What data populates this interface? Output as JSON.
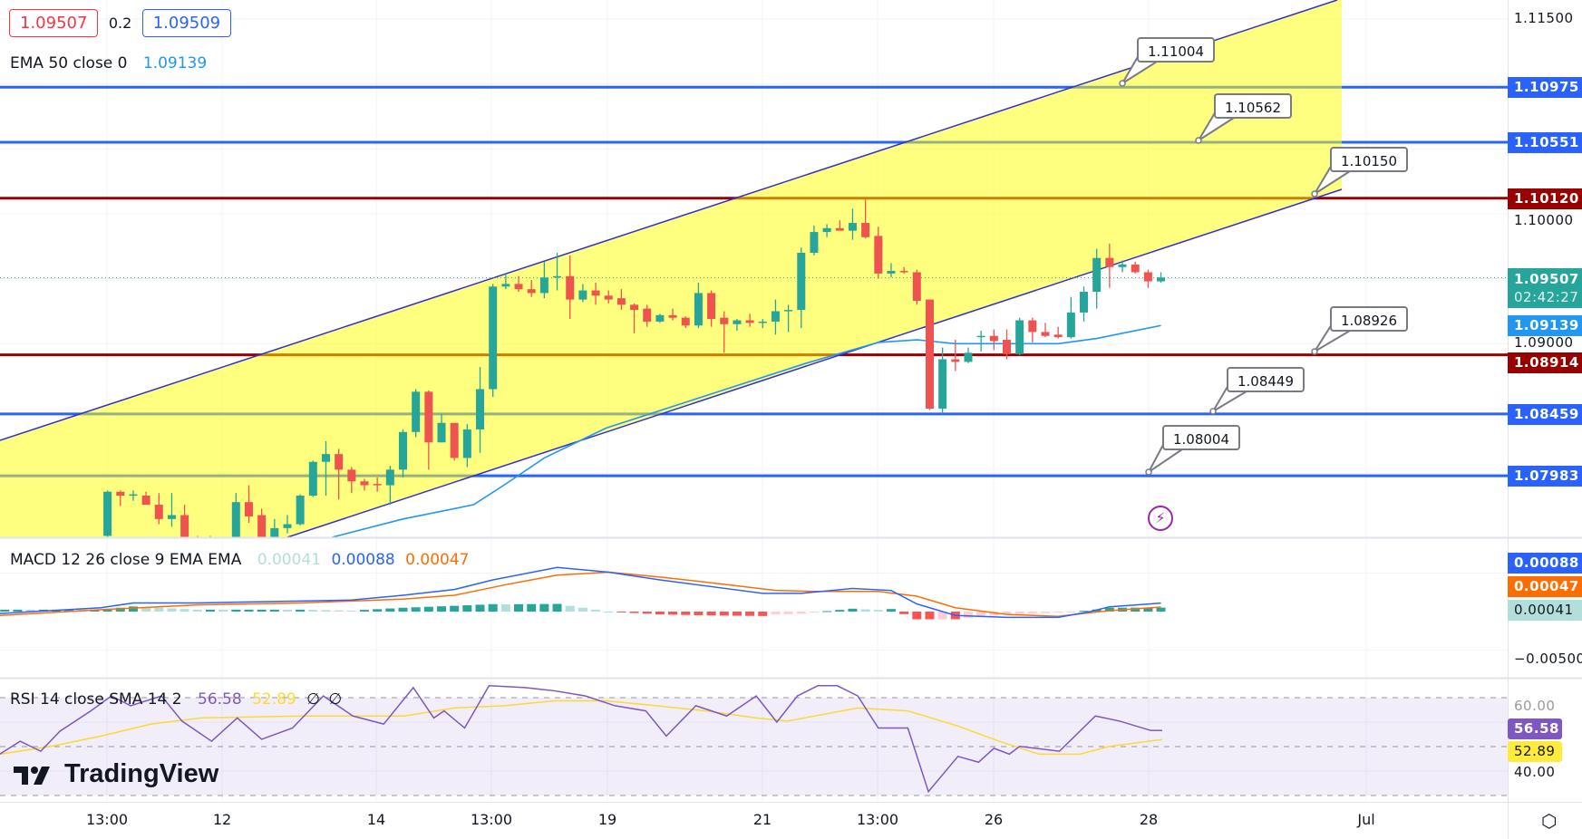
{
  "legend": {
    "bid": "1.09507",
    "spread": "0.2",
    "ask": "1.09509",
    "ema_label": "EMA 50 close 0",
    "ema_value": "1.09139",
    "macd_label": "MACD 12 26 close 9 EMA EMA",
    "macd_hist": "0.00041",
    "macd_line": "0.00088",
    "macd_signal": "0.00047",
    "rsi_label": "RSI 14 close SMA 14 2",
    "rsi_value": "56.58",
    "rsi_sma": "52.89",
    "rsi_extra1": "∅",
    "rsi_extra2": "∅"
  },
  "colors": {
    "up": "#26a69a",
    "down": "#ef5350",
    "blue_line": "#2962ff",
    "red_line": "#990000",
    "ema": "#2196f3",
    "channel_fill": "#ffff00",
    "channel_line": "#3030d0",
    "macd": "#2962ff",
    "signal": "#ff6d00",
    "rsi": "#7e57c2",
    "rsi_sma": "#fdd835"
  },
  "logo": "TradingView",
  "price_axis": {
    "ticks": [
      "1.11500",
      "1.10000",
      "1.09000"
    ],
    "labels": [
      {
        "text": "1.10975",
        "value": 1.10975,
        "color": "#2962ff"
      },
      {
        "text": "1.10551",
        "value": 1.10551,
        "color": "#2962ff"
      },
      {
        "text": "1.10120",
        "value": 1.1012,
        "color": "#990000"
      },
      {
        "text": "1.09139",
        "value": 1.09139,
        "color": "#2196f3"
      },
      {
        "text": "1.08914",
        "value": 1.08914,
        "color": "#990000"
      },
      {
        "text": "1.08459",
        "value": 1.08459,
        "color": "#2962ff"
      },
      {
        "text": "1.07983",
        "value": 1.07983,
        "color": "#2962ff"
      }
    ],
    "last_price": "1.09507",
    "countdown": "02:42:27"
  },
  "macd_axis": {
    "line": "0.00088",
    "signal": "0.00047",
    "hist": "0.00041",
    "tick": "−0.00500"
  },
  "rsi_axis": {
    "value": "56.58",
    "sma": "52.89",
    "tick_40": "40.00",
    "tick_60": "60.00"
  },
  "time_axis": [
    "13:00",
    "12",
    "14",
    "13:00",
    "19",
    "21",
    "13:00",
    "26",
    "28",
    "Jul"
  ],
  "callouts": [
    "1.11004",
    "1.10562",
    "1.10150",
    "1.08926",
    "1.08449",
    "1.08004"
  ],
  "chart_data": [
    {
      "type": "candlestick",
      "ylim": [
        1.075,
        1.1165
      ],
      "hlines": [
        {
          "value": 1.10975,
          "color": "#2962ff"
        },
        {
          "value": 1.10551,
          "color": "#2962ff"
        },
        {
          "value": 1.1012,
          "color": "#990000"
        },
        {
          "value": 1.08914,
          "color": "#990000"
        },
        {
          "value": 1.08459,
          "color": "#2962ff"
        },
        {
          "value": 1.07983,
          "color": "#2962ff"
        }
      ],
      "candles_ohlc": [
        [
          1.0752,
          1.0787,
          1.0745,
          1.0786
        ],
        [
          1.0786,
          1.0787,
          1.0775,
          1.0783
        ],
        [
          1.0783,
          1.0787,
          1.0779,
          1.0784
        ],
        [
          1.0783,
          1.0786,
          1.0776,
          1.0776
        ],
        [
          1.0776,
          1.0785,
          1.0761,
          1.0765
        ],
        [
          1.0765,
          1.0785,
          1.0759,
          1.0768
        ],
        [
          1.0768,
          1.0776,
          1.0748,
          1.0751
        ],
        [
          1.0749,
          1.0752,
          1.0745,
          1.0748
        ],
        [
          1.0748,
          1.0752,
          1.0745,
          1.0748
        ],
        [
          1.0745,
          1.0749,
          1.074,
          1.0747
        ],
        [
          1.0751,
          1.0785,
          1.0748,
          1.0778
        ],
        [
          1.0778,
          1.0791,
          1.0762,
          1.0767
        ],
        [
          1.0768,
          1.0773,
          1.0748,
          1.0751
        ],
        [
          1.0751,
          1.0765,
          1.0748,
          1.0758
        ],
        [
          1.0758,
          1.0768,
          1.0754,
          1.0761
        ],
        [
          1.0761,
          1.0784,
          1.076,
          1.0783
        ],
        [
          1.0783,
          1.081,
          1.0782,
          1.0809
        ],
        [
          1.0809,
          1.0825,
          1.0783,
          1.0815
        ],
        [
          1.0815,
          1.0819,
          1.078,
          1.0803
        ],
        [
          1.0803,
          1.0805,
          1.0785,
          1.0794
        ],
        [
          1.0794,
          1.0796,
          1.0787,
          1.0791
        ],
        [
          1.0792,
          1.0797,
          1.0786,
          1.0791
        ],
        [
          1.0791,
          1.0806,
          1.0776,
          1.0803
        ],
        [
          1.0803,
          1.0834,
          1.0797,
          1.0832
        ],
        [
          1.0832,
          1.0865,
          1.0828,
          1.0863
        ],
        [
          1.0863,
          1.0864,
          1.0803,
          1.0824
        ],
        [
          1.0824,
          1.0846,
          1.0824,
          1.0839
        ],
        [
          1.0839,
          1.0839,
          1.081,
          1.0812
        ],
        [
          1.0812,
          1.0838,
          1.0805,
          1.0834
        ],
        [
          1.0834,
          1.0882,
          1.0816,
          1.0865
        ],
        [
          1.0865,
          1.0946,
          1.0859,
          1.0944
        ],
        [
          1.0944,
          1.0953,
          1.0942,
          1.0946
        ],
        [
          1.0946,
          1.0952,
          1.094,
          1.0942
        ],
        [
          1.0942,
          1.0949,
          1.0936,
          1.0939
        ],
        [
          1.0939,
          1.0963,
          1.0935,
          1.0951
        ],
        [
          1.0951,
          1.097,
          1.0941,
          1.0952
        ],
        [
          1.0952,
          1.0968,
          1.0919,
          1.0934
        ],
        [
          1.0934,
          1.0946,
          1.0932,
          1.0941
        ],
        [
          1.0941,
          1.0947,
          1.093,
          1.0937
        ],
        [
          1.0937,
          1.0941,
          1.0931,
          1.0934
        ],
        [
          1.0935,
          1.0942,
          1.0926,
          1.093
        ],
        [
          1.093,
          1.0931,
          1.0908,
          1.0926
        ],
        [
          1.0927,
          1.093,
          1.0913,
          1.0917
        ],
        [
          1.0917,
          1.0923,
          1.0916,
          1.0922
        ],
        [
          1.0922,
          1.0927,
          1.0918,
          1.092
        ],
        [
          1.092,
          1.0921,
          1.0912,
          1.0914
        ],
        [
          1.0914,
          1.0947,
          1.0912,
          1.0939
        ],
        [
          1.0939,
          1.0941,
          1.0913,
          1.0919
        ],
        [
          1.092,
          1.0925,
          1.0893,
          1.0915
        ],
        [
          1.0915,
          1.0919,
          1.091,
          1.0918
        ],
        [
          1.0918,
          1.0923,
          1.0913,
          1.0916
        ],
        [
          1.0916,
          1.0919,
          1.0912,
          1.0917
        ],
        [
          1.0917,
          1.0934,
          1.0907,
          1.0925
        ],
        [
          1.0925,
          1.093,
          1.0909,
          1.0926
        ],
        [
          1.0926,
          1.0974,
          1.0912,
          1.097
        ],
        [
          1.097,
          1.0991,
          1.0968,
          1.0986
        ],
        [
          1.0986,
          1.0992,
          1.0982,
          1.0989
        ],
        [
          1.0989,
          1.0995,
          1.0987,
          1.0987
        ],
        [
          1.0987,
          1.1004,
          1.098,
          1.0993
        ],
        [
          1.0993,
          1.1011,
          1.0981,
          1.0982
        ],
        [
          1.0983,
          1.099,
          1.095,
          1.0954
        ],
        [
          1.0954,
          1.0962,
          1.0951,
          1.0956
        ],
        [
          1.0956,
          1.0959,
          1.0954,
          1.0955
        ],
        [
          1.0955,
          1.0957,
          1.093,
          1.0933
        ],
        [
          1.0934,
          1.0934,
          1.0849,
          1.085
        ],
        [
          1.085,
          1.0897,
          1.0846,
          1.0888
        ],
        [
          1.0888,
          1.0903,
          1.0879,
          1.0886
        ],
        [
          1.0886,
          1.0897,
          1.0885,
          1.0893
        ],
        [
          1.0905,
          1.091,
          1.0894,
          1.0906
        ],
        [
          1.0906,
          1.0911,
          1.0895,
          1.0902
        ],
        [
          1.0903,
          1.0911,
          1.0888,
          1.0892
        ],
        [
          1.0892,
          1.092,
          1.0891,
          1.0918
        ],
        [
          1.0918,
          1.092,
          1.0901,
          1.0909
        ],
        [
          1.0909,
          1.0916,
          1.0905,
          1.0906
        ],
        [
          1.0907,
          1.0913,
          1.0904,
          1.0905
        ],
        [
          1.0905,
          1.0936,
          1.0904,
          1.0924
        ],
        [
          1.0924,
          1.0944,
          1.0917,
          1.094
        ],
        [
          1.094,
          1.0973,
          1.0927,
          1.0966
        ],
        [
          1.0966,
          1.0977,
          1.0943,
          1.0959
        ],
        [
          1.0959,
          1.0964,
          1.0955,
          1.0961
        ],
        [
          1.0961,
          1.0963,
          1.0954,
          1.0955
        ],
        [
          1.0955,
          1.0957,
          1.0943,
          1.0948
        ],
        [
          1.0948,
          1.0955,
          1.0947,
          1.0951
        ]
      ],
      "ema50_points_bar_value": [
        [
          17.5,
          1.0751
        ],
        [
          23,
          1.0765
        ],
        [
          28.5,
          1.0776
        ],
        [
          31,
          1.0792
        ],
        [
          34,
          1.0812
        ],
        [
          38.8,
          1.0835
        ],
        [
          46.6,
          1.086
        ],
        [
          54.4,
          1.0885
        ],
        [
          60,
          1.0901
        ],
        [
          63,
          1.0903
        ],
        [
          66,
          1.09
        ],
        [
          74,
          1.09
        ],
        [
          77,
          1.0904
        ],
        [
          82,
          1.0914
        ]
      ]
    },
    {
      "type": "line",
      "name": "MACD",
      "ylim": [
        -0.005,
        0.005
      ],
      "macd_points_bar_value": [
        [
          -8.4,
          -0.0002
        ],
        [
          -0.5,
          0.0004
        ],
        [
          2,
          0.0009
        ],
        [
          7,
          0.0009
        ],
        [
          15,
          0.0011
        ],
        [
          19,
          0.0012
        ],
        [
          23,
          0.0017
        ],
        [
          27,
          0.0023
        ],
        [
          30,
          0.0033
        ],
        [
          35,
          0.0046
        ],
        [
          39,
          0.0041
        ],
        [
          43,
          0.0033
        ],
        [
          47,
          0.0026
        ],
        [
          51,
          0.0019
        ],
        [
          54,
          0.0019
        ],
        [
          58,
          0.0024
        ],
        [
          61,
          0.0022
        ],
        [
          63,
          0.0008
        ],
        [
          66,
          -0.0004
        ],
        [
          70,
          -0.0006
        ],
        [
          74,
          -0.0006
        ],
        [
          76.5,
          0.0
        ],
        [
          78,
          0.0005
        ],
        [
          82,
          0.00088
        ]
      ],
      "signal_points_bar_value": [
        [
          -8.4,
          -0.0004
        ],
        [
          -0.5,
          0.0002
        ],
        [
          7,
          0.0007
        ],
        [
          15,
          0.0009
        ],
        [
          23,
          0.0013
        ],
        [
          27,
          0.0017
        ],
        [
          31,
          0.0028
        ],
        [
          35,
          0.0038
        ],
        [
          39,
          0.0041
        ],
        [
          43,
          0.0036
        ],
        [
          47,
          0.003
        ],
        [
          52,
          0.0022
        ],
        [
          55,
          0.0021
        ],
        [
          60,
          0.0021
        ],
        [
          63,
          0.0016
        ],
        [
          66,
          0.0004
        ],
        [
          70,
          -0.0003
        ],
        [
          74,
          -0.0005
        ],
        [
          78,
          0.0001
        ],
        [
          82,
          0.00047
        ]
      ]
    },
    {
      "type": "line",
      "name": "RSI",
      "ylim": [
        25,
        75
      ],
      "levels": [
        70,
        50,
        30
      ],
      "rsi_points_bar_value": [
        [
          -8.4,
          46.9
        ],
        [
          -6.8,
          52.2
        ],
        [
          -5.2,
          48.1
        ],
        [
          -3.7,
          56.3
        ],
        [
          -1.3,
          64.6
        ],
        [
          0.3,
          70.7
        ],
        [
          1.8,
          66.7
        ],
        [
          4.2,
          70.7
        ],
        [
          5.8,
          60.4
        ],
        [
          8.1,
          52.2
        ],
        [
          10.1,
          61.7
        ],
        [
          12,
          53.0
        ],
        [
          14.4,
          57.6
        ],
        [
          16.8,
          70.7
        ],
        [
          19.1,
          62.5
        ],
        [
          21.5,
          59.2
        ],
        [
          23.8,
          74.1
        ],
        [
          25.4,
          61.7
        ],
        [
          26.2,
          64.6
        ],
        [
          27.8,
          57.6
        ],
        [
          29.7,
          74.9
        ],
        [
          32.5,
          74.1
        ],
        [
          34.8,
          72.8
        ],
        [
          37.2,
          70.7
        ],
        [
          39.5,
          66.7
        ],
        [
          41.9,
          64.6
        ],
        [
          43.5,
          54.3
        ],
        [
          45.8,
          66.7
        ],
        [
          48.2,
          62.5
        ],
        [
          50.5,
          70.7
        ],
        [
          52.1,
          60.0
        ],
        [
          53.7,
          70.7
        ],
        [
          55.3,
          74.9
        ],
        [
          56.8,
          74.9
        ],
        [
          58.4,
          70.7
        ],
        [
          60,
          57.6
        ],
        [
          62.3,
          57.6
        ],
        [
          63.9,
          31.6
        ],
        [
          66.2,
          46.0
        ],
        [
          67.8,
          43.6
        ],
        [
          69,
          49.3
        ],
        [
          70.2,
          46.9
        ],
        [
          71,
          50.1
        ],
        [
          74.1,
          48.1
        ],
        [
          76.9,
          62.5
        ],
        [
          78.8,
          60.4
        ],
        [
          81.2,
          56.6
        ],
        [
          82.1,
          56.58
        ]
      ],
      "sma_points_bar_value": [
        [
          -8.4,
          46.9
        ],
        [
          -4.4,
          50.1
        ],
        [
          -0.5,
          54.3
        ],
        [
          3.4,
          59.2
        ],
        [
          7.3,
          61.7
        ],
        [
          15.2,
          62.5
        ],
        [
          23.1,
          62.5
        ],
        [
          27,
          65.8
        ],
        [
          30.9,
          66.7
        ],
        [
          34.8,
          68.7
        ],
        [
          38.8,
          68.7
        ],
        [
          42.7,
          66.7
        ],
        [
          46.6,
          64.6
        ],
        [
          50.5,
          61.7
        ],
        [
          52.9,
          60.4
        ],
        [
          58.4,
          65.8
        ],
        [
          62.3,
          64.6
        ],
        [
          66.2,
          58.4
        ],
        [
          69.4,
          52.2
        ],
        [
          72.5,
          46.9
        ],
        [
          75.7,
          46.9
        ],
        [
          78,
          50.1
        ],
        [
          82.1,
          52.89
        ]
      ]
    }
  ]
}
